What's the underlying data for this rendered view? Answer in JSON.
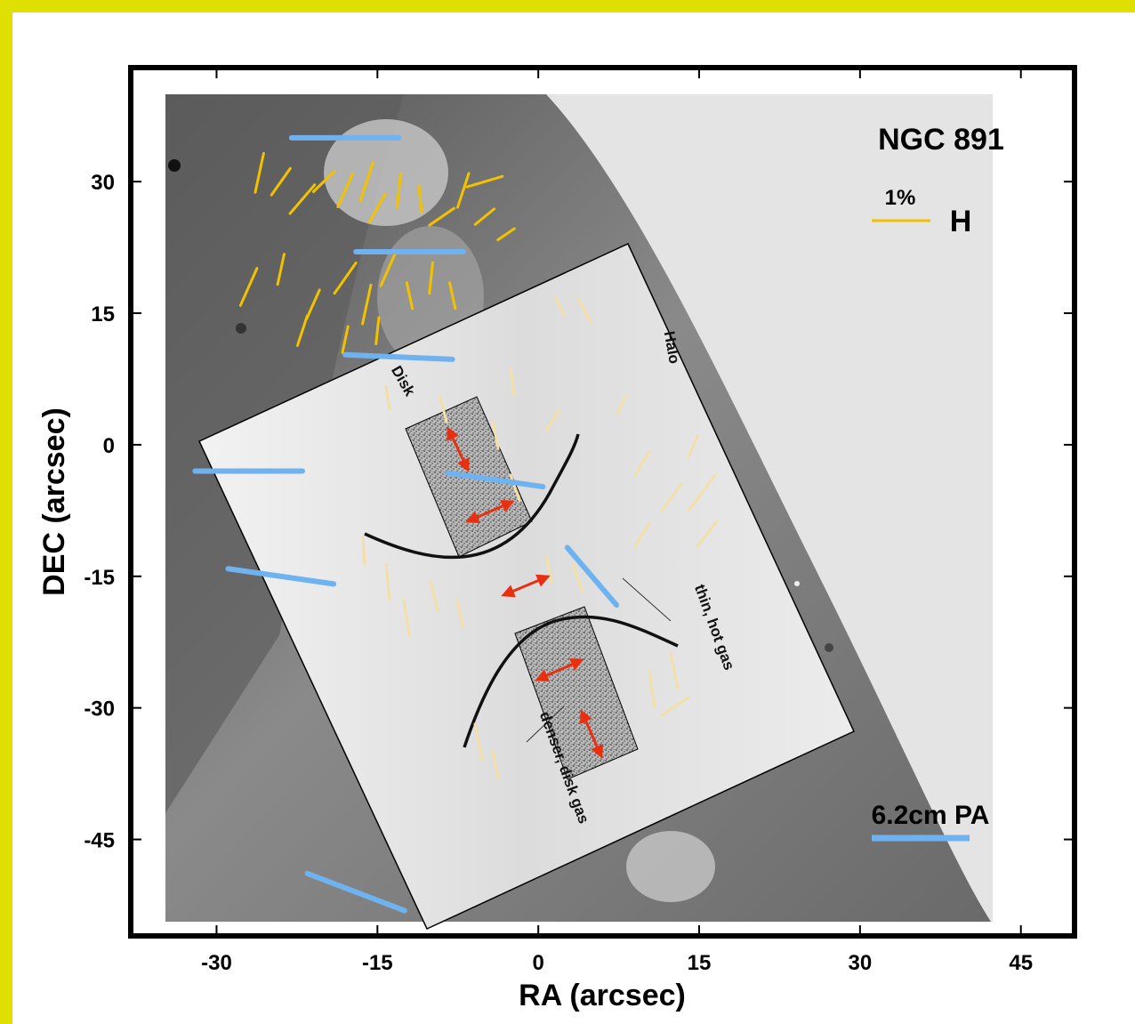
{
  "chart_data": {
    "type": "scatter",
    "title": "NGC 891",
    "xlabel": "RA (arcsec)",
    "ylabel": "DEC (arcsec)",
    "xlim": [
      -38,
      50
    ],
    "ylim": [
      -56,
      43
    ],
    "xticks": [
      -30,
      -15,
      0,
      15,
      30,
      45
    ],
    "yticks": [
      30,
      15,
      0,
      -15,
      -30,
      -45
    ],
    "xtick_labels": [
      "-30",
      "-15",
      "0",
      "15",
      "30",
      "45"
    ],
    "ytick_labels": [
      "30",
      "15",
      "0",
      "-15",
      "-30",
      "-45"
    ],
    "legend": {
      "h_scale_label": "1%",
      "h_band_label": "H",
      "radio_label": "6.2cm PA"
    },
    "colors": {
      "h_vectors": "#f2c200",
      "radio_vectors": "#6fb2f0",
      "background": "#e0e000",
      "arrows": "#e83010"
    },
    "h_band_polarization_vectors": [
      {
        "x": -26,
        "y": 31,
        "length": 4.5,
        "angle_deg": 80
      },
      {
        "x": -24,
        "y": 30,
        "length": 3.5,
        "angle_deg": 60
      },
      {
        "x": -22,
        "y": 28,
        "length": 4,
        "angle_deg": 55
      },
      {
        "x": -20,
        "y": 30,
        "length": 3,
        "angle_deg": 50
      },
      {
        "x": -18,
        "y": 29,
        "length": 4,
        "angle_deg": 70
      },
      {
        "x": -16,
        "y": 30,
        "length": 4.5,
        "angle_deg": 75
      },
      {
        "x": -15,
        "y": 27,
        "length": 3.5,
        "angle_deg": 65
      },
      {
        "x": -13,
        "y": 29,
        "length": 4,
        "angle_deg": 85
      },
      {
        "x": -11,
        "y": 28,
        "length": 3,
        "angle_deg": 95
      },
      {
        "x": -9,
        "y": 26,
        "length": 3,
        "angle_deg": 40
      },
      {
        "x": -7,
        "y": 29,
        "length": 4,
        "angle_deg": 75
      },
      {
        "x": -5,
        "y": 30,
        "length": 3.5,
        "angle_deg": 20
      },
      {
        "x": -5,
        "y": 26,
        "length": 2.5,
        "angle_deg": 45
      },
      {
        "x": -3,
        "y": 24,
        "length": 2,
        "angle_deg": 40
      },
      {
        "x": -27,
        "y": 18,
        "length": 4.5,
        "angle_deg": 70
      },
      {
        "x": -24,
        "y": 20,
        "length": 3.5,
        "angle_deg": 80
      },
      {
        "x": -21,
        "y": 16,
        "length": 3.5,
        "angle_deg": 70
      },
      {
        "x": -18,
        "y": 19,
        "length": 4,
        "angle_deg": 60
      },
      {
        "x": -16,
        "y": 16,
        "length": 4.5,
        "angle_deg": 80
      },
      {
        "x": -14,
        "y": 20,
        "length": 4,
        "angle_deg": 70
      },
      {
        "x": -12,
        "y": 17,
        "length": 3,
        "angle_deg": 100
      },
      {
        "x": -10,
        "y": 19,
        "length": 3.5,
        "angle_deg": 85
      },
      {
        "x": -8,
        "y": 17,
        "length": 3,
        "angle_deg": 100
      },
      {
        "x": -22,
        "y": 13,
        "length": 3.5,
        "angle_deg": 75
      },
      {
        "x": -18,
        "y": 12,
        "length": 3,
        "angle_deg": 80
      },
      {
        "x": -15,
        "y": 13,
        "length": 3,
        "angle_deg": 85
      }
    ],
    "radio_6_2cm_vectors": [
      {
        "x": -18,
        "y": 35,
        "length": 10,
        "angle_deg": 0
      },
      {
        "x": -12,
        "y": 22,
        "length": 10,
        "angle_deg": 0
      },
      {
        "x": -13,
        "y": 10,
        "length": 10,
        "angle_deg": -3
      },
      {
        "x": -27,
        "y": -3,
        "length": 10,
        "angle_deg": 0
      },
      {
        "x": -24,
        "y": -15,
        "length": 10,
        "angle_deg": -10
      },
      {
        "x": -17,
        "y": -51,
        "length": 10,
        "angle_deg": -25
      },
      {
        "x": -4,
        "y": -4,
        "length": 9,
        "angle_deg": -10
      },
      {
        "x": 5,
        "y": -15,
        "length": 8,
        "angle_deg": -55
      }
    ],
    "annotations": [
      {
        "text": "Disk",
        "x": -13,
        "y": 7,
        "rotation_deg": 60
      },
      {
        "text": "Halo",
        "x": 12,
        "y": 11,
        "rotation_deg": 80
      },
      {
        "text": "thin, hot gas",
        "x": 16,
        "y": -21,
        "rotation_deg": 70
      },
      {
        "text": "denser, disk gas",
        "x": 2,
        "y": -37,
        "rotation_deg": 70
      }
    ],
    "grid": false,
    "legend_position": "top-right"
  }
}
